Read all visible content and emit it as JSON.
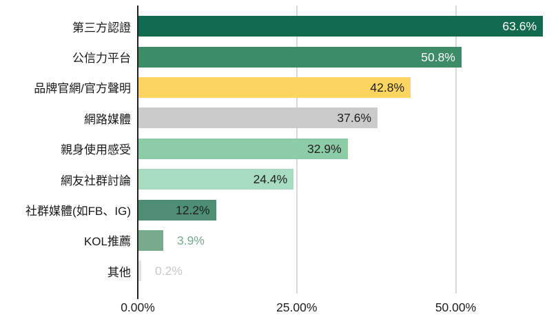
{
  "chart_data": {
    "type": "bar",
    "orientation": "horizontal",
    "title": "",
    "categories": [
      "第三方認證",
      "公信力平台",
      "品牌官網/官方聲明",
      "網路媒體",
      "親身使用感受",
      "網友社群討論",
      "社群媒體(如FB、IG)",
      "KOL推薦",
      "其他"
    ],
    "values": [
      63.6,
      50.8,
      42.8,
      37.6,
      32.9,
      24.4,
      12.2,
      3.9,
      0.2
    ],
    "value_labels": [
      "63.6%",
      "50.8%",
      "42.8%",
      "37.6%",
      "32.9%",
      "24.4%",
      "12.2%",
      "3.9%",
      "0.2%"
    ],
    "bar_colors": [
      "#126b4e",
      "#3d8c68",
      "#fbd560",
      "#cbcbcb",
      "#8ccca6",
      "#a8dcc0",
      "#4d8e74",
      "#78aa8d",
      "#e2e2e2"
    ],
    "value_label_colors": [
      "#ffffff",
      "#ffffff",
      "#212121",
      "#212121",
      "#212121",
      "#212121",
      "#212121",
      "#74ab8d",
      "#c9c9c9"
    ],
    "value_label_placement": [
      "inside",
      "inside",
      "inside",
      "inside",
      "inside",
      "inside",
      "inside",
      "outside",
      "outside"
    ],
    "xlabel": "",
    "ylabel": "",
    "x_axis": {
      "tick_labels": [
        "0.00%",
        "25.00%",
        "50.00%"
      ],
      "tick_values": [
        0,
        25,
        50
      ],
      "range": [
        0,
        66
      ]
    },
    "grid": true,
    "legend": false
  },
  "style_colors": {
    "axis_line": "#212121",
    "gridline": "#d8d8d8",
    "category_text": "#1a1a1a",
    "background": "#ffffff"
  }
}
